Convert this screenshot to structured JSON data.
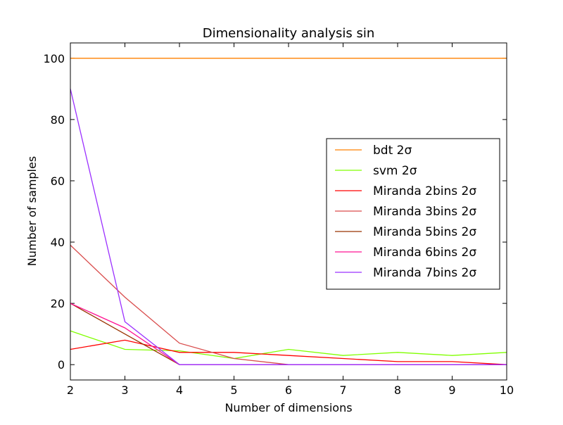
{
  "chart_data": {
    "type": "line",
    "title": "Dimensionality analysis sin",
    "xlabel": "Number of dimensions",
    "ylabel": "Number of samples",
    "xlim": [
      2,
      10
    ],
    "ylim": [
      -5,
      105
    ],
    "xticks": [
      2,
      3,
      4,
      5,
      6,
      7,
      8,
      9,
      10
    ],
    "yticks": [
      0,
      20,
      40,
      60,
      80,
      100
    ],
    "grid": false,
    "legend_position": "center-right",
    "x": [
      2,
      3,
      4,
      5,
      6,
      7,
      8,
      9,
      10
    ],
    "series": [
      {
        "name": "bdt 2σ",
        "color": "#ff8000",
        "values": [
          100,
          100,
          100,
          100,
          100,
          100,
          100,
          100,
          100
        ]
      },
      {
        "name": "svm 2σ",
        "color": "#80ff00",
        "values": [
          11,
          5,
          4.5,
          2,
          5,
          3,
          4,
          3,
          4
        ]
      },
      {
        "name": "Miranda 2bins 2σ",
        "color": "#ff0000",
        "values": [
          5,
          8,
          4,
          4,
          3,
          2,
          1,
          1,
          0
        ]
      },
      {
        "name": "Miranda 3bins 2σ",
        "color": "#d94c4c",
        "values": [
          39,
          22,
          7,
          2,
          0,
          0,
          0,
          0,
          0
        ]
      },
      {
        "name": "Miranda 5bins 2σ",
        "color": "#993300",
        "values": [
          20,
          10,
          0,
          0,
          0,
          0,
          0,
          0,
          0
        ]
      },
      {
        "name": "Miranda 6bins 2σ",
        "color": "#ff1493",
        "values": [
          20,
          12,
          0,
          0,
          0,
          0,
          0,
          0,
          0
        ]
      },
      {
        "name": "Miranda 7bins 2σ",
        "color": "#9b30ff",
        "values": [
          90,
          14,
          0,
          0,
          0,
          0,
          0,
          0,
          0
        ]
      }
    ]
  }
}
